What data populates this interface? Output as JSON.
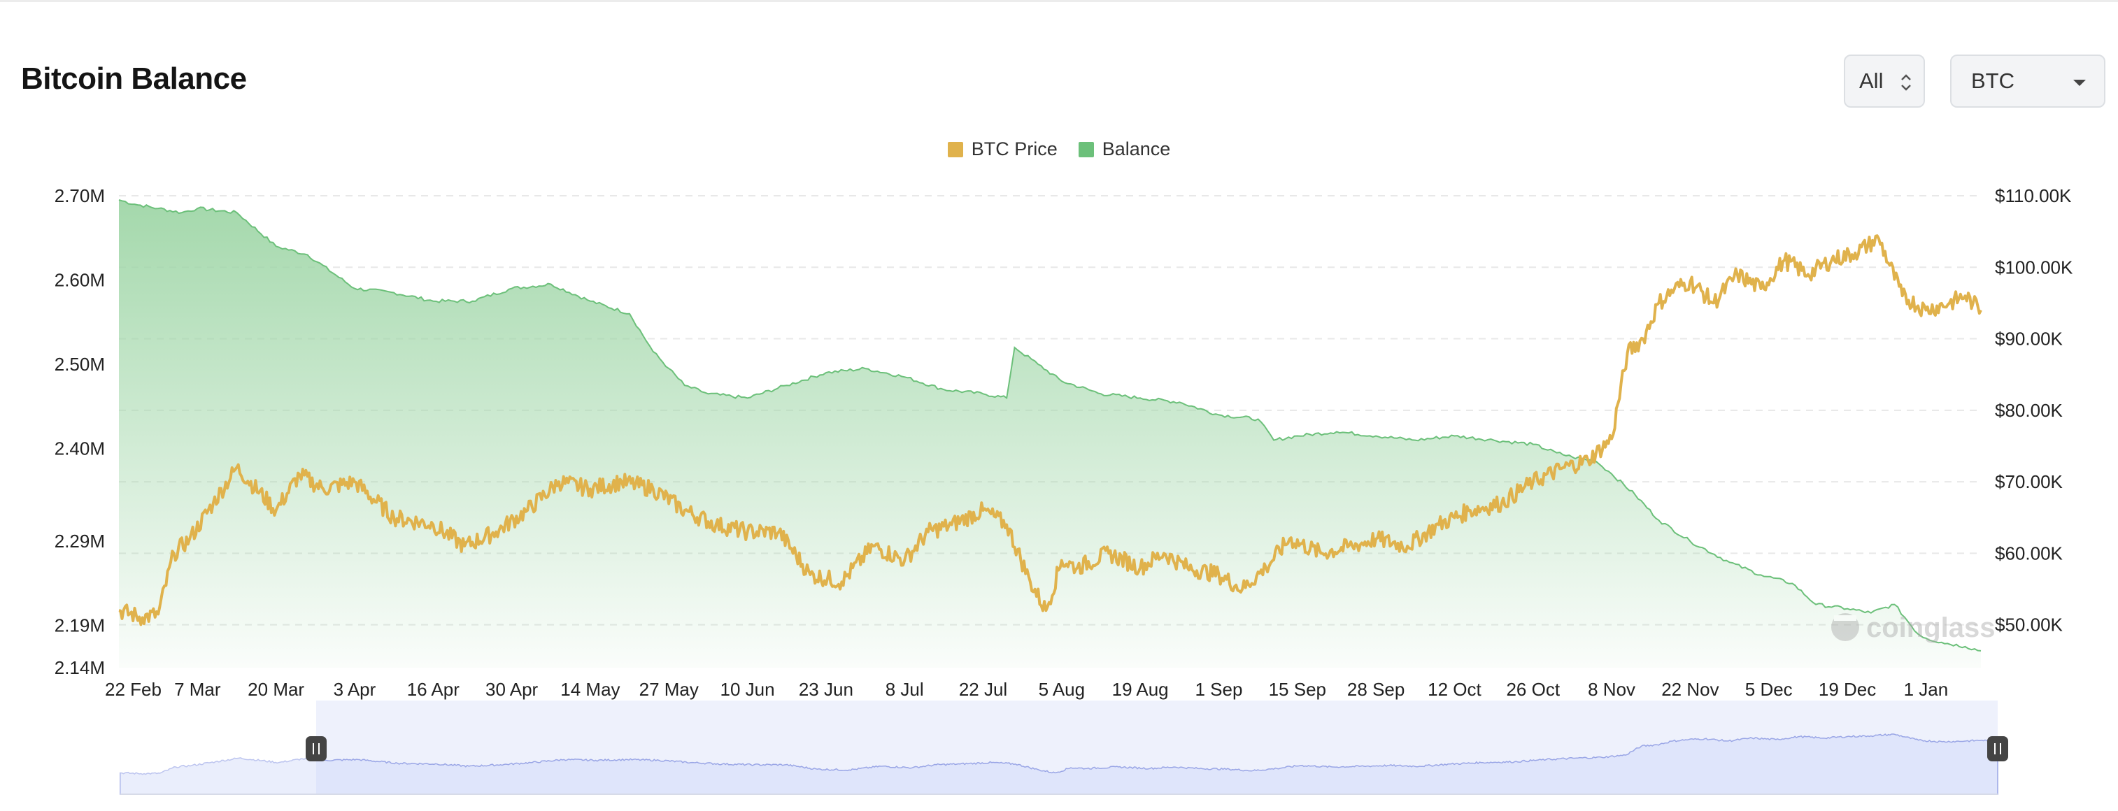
{
  "header": {
    "title": "Bitcoin Balance",
    "range_select": "All",
    "coin_select": "BTC"
  },
  "legend": {
    "price_label": "BTC Price",
    "balance_label": "Balance"
  },
  "watermark": "coinglass",
  "colors": {
    "price": "#e0b24c",
    "balance_line": "#6cc07a",
    "balance_fill_top": "#9fd6a7",
    "navigator_fill": "#dfe5fb",
    "navigator_line": "#9aa6e6",
    "grid": "#e8e8e8"
  },
  "chart_data": {
    "type": "line",
    "title": "Bitcoin Balance",
    "x_tick_labels": [
      "22 Feb",
      "7 Mar",
      "20 Mar",
      "3 Apr",
      "16 Apr",
      "30 Apr",
      "14 May",
      "27 May",
      "10 Jun",
      "23 Jun",
      "8 Jul",
      "22 Jul",
      "5 Aug",
      "19 Aug",
      "1 Sep",
      "15 Sep",
      "28 Sep",
      "12 Oct",
      "26 Oct",
      "8 Nov",
      "22 Nov",
      "5 Dec",
      "19 Dec",
      "1 Jan"
    ],
    "left_axis": {
      "tick_labels": [
        "2.70M",
        "2.60M",
        "2.50M",
        "2.40M",
        "2.29M",
        "2.19M",
        "2.14M"
      ],
      "ylim": [
        2.14,
        2.7
      ]
    },
    "right_axis": {
      "tick_labels": [
        "$110.00K",
        "$100.00K",
        "$90.00K",
        "$80.00K",
        "$70.00K",
        "$60.00K",
        "$50.00K"
      ],
      "ylim": [
        44,
        110
      ]
    },
    "grid": true,
    "legend_position": "top-center",
    "series": [
      {
        "name": "Balance",
        "axis": "left",
        "style": "area",
        "x": [
          0.0,
          0.2,
          0.5,
          0.8,
          1.0,
          1.5,
          2.0,
          2.4,
          3.0,
          3.5,
          4.0,
          4.5,
          5.0,
          5.5,
          6.0,
          6.5,
          6.8,
          7.0,
          7.2,
          7.5,
          8.0,
          8.5,
          9.0,
          9.5,
          10.0,
          10.5,
          11.0,
          11.3,
          11.4,
          11.7,
          12.0,
          12.5,
          13.0,
          13.5,
          14.0,
          14.5,
          14.7,
          15.0,
          15.5,
          16.0,
          16.5,
          17.0,
          17.5,
          18.0,
          18.3,
          18.5,
          18.8,
          19.0,
          19.3,
          19.6,
          20.0,
          20.5,
          20.9,
          21.3,
          21.6,
          22.0,
          22.3,
          22.6,
          22.9,
          23.0,
          23.2,
          23.5,
          23.7
        ],
        "y": [
          2.695,
          2.69,
          2.685,
          2.68,
          2.685,
          2.68,
          2.64,
          2.63,
          2.59,
          2.585,
          2.575,
          2.575,
          2.59,
          2.595,
          2.575,
          2.56,
          2.515,
          2.495,
          2.475,
          2.465,
          2.46,
          2.475,
          2.49,
          2.495,
          2.485,
          2.47,
          2.465,
          2.46,
          2.52,
          2.5,
          2.48,
          2.465,
          2.46,
          2.455,
          2.44,
          2.435,
          2.41,
          2.415,
          2.42,
          2.415,
          2.41,
          2.415,
          2.41,
          2.405,
          2.395,
          2.39,
          2.385,
          2.37,
          2.345,
          2.315,
          2.29,
          2.265,
          2.25,
          2.24,
          2.215,
          2.21,
          2.205,
          2.215,
          2.18,
          2.175,
          2.17,
          2.165,
          2.16
        ]
      },
      {
        "name": "BTC Price",
        "axis": "right",
        "style": "line",
        "x": [
          0.0,
          0.3,
          0.5,
          0.7,
          0.9,
          1.2,
          1.5,
          2.0,
          2.3,
          2.6,
          3.0,
          3.5,
          4.0,
          4.4,
          4.8,
          5.2,
          5.6,
          6.0,
          6.4,
          6.8,
          7.2,
          7.6,
          8.0,
          8.4,
          8.8,
          9.2,
          9.6,
          10.0,
          10.3,
          10.6,
          11.0,
          11.3,
          11.6,
          11.8,
          12.0,
          12.2,
          12.6,
          13.0,
          13.3,
          13.6,
          14.0,
          14.3,
          14.6,
          14.9,
          15.3,
          15.7,
          16.0,
          16.4,
          16.8,
          17.2,
          17.6,
          18.0,
          18.4,
          18.7,
          19.0,
          19.2,
          19.4,
          19.6,
          19.8,
          20.0,
          20.3,
          20.6,
          20.9,
          21.2,
          21.5,
          21.8,
          22.1,
          22.4,
          22.7,
          23.0,
          23.3,
          23.5,
          23.6,
          23.7
        ],
        "y": [
          52,
          51,
          51.5,
          60,
          62,
          67,
          72,
          66,
          71,
          69,
          70,
          65,
          64,
          61,
          63,
          66,
          70,
          69,
          70,
          69,
          66,
          64,
          63,
          63,
          57,
          56,
          61,
          59,
          63,
          64,
          66,
          64,
          56,
          52,
          59,
          58,
          60,
          58,
          60,
          58,
          57,
          55,
          58,
          62,
          60,
          61,
          62,
          61,
          64,
          66,
          67,
          70,
          72,
          73,
          76,
          88,
          90,
          95,
          97,
          98,
          95,
          99,
          97,
          101,
          99,
          101,
          102,
          104,
          96,
          94,
          95,
          96,
          95,
          94
        ]
      }
    ]
  }
}
